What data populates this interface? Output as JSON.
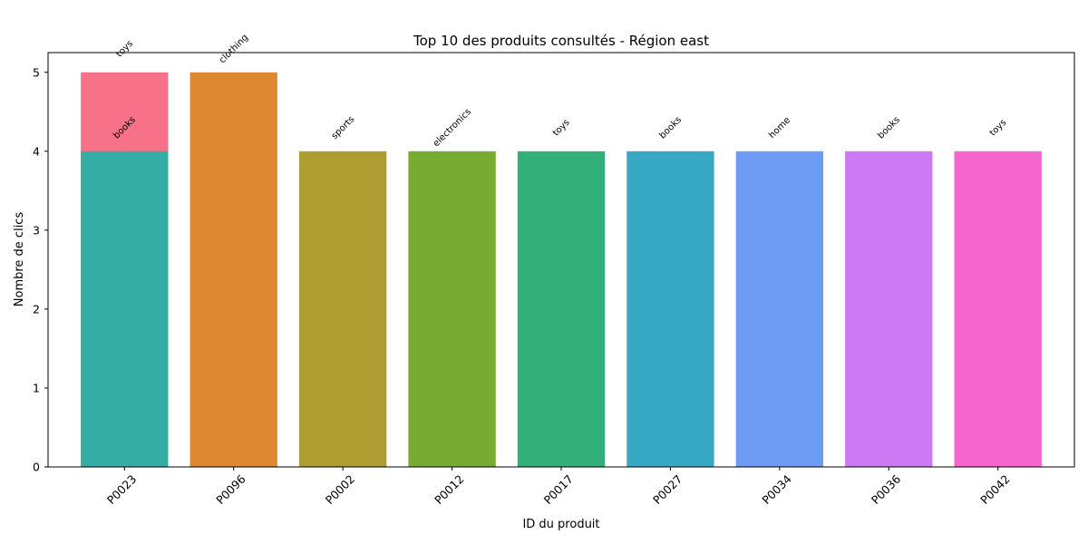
{
  "chart_data": {
    "type": "bar",
    "title": "Top 10 des produits consultés - Région east",
    "xlabel": "ID du produit",
    "ylabel": "Nombre de clics",
    "ylim": [
      0,
      5.25
    ],
    "yticks": [
      0,
      1,
      2,
      3,
      4,
      5
    ],
    "grid": false,
    "bars": [
      {
        "product": "P0023",
        "category": "toys",
        "value": 5,
        "color": "#f77189"
      },
      {
        "product": "P0096",
        "category": "clothing",
        "value": 5,
        "color": "#dc8932"
      },
      {
        "product": "P0002",
        "category": "sports",
        "value": 4,
        "color": "#ae9d31"
      },
      {
        "product": "P0012",
        "category": "electronics",
        "value": 4,
        "color": "#77ab31"
      },
      {
        "product": "P0017",
        "category": "toys",
        "value": 4,
        "color": "#33b07a"
      },
      {
        "product": "P0023",
        "category": "books",
        "value": 4,
        "color": "#36ada4"
      },
      {
        "product": "P0027",
        "category": "books",
        "value": 4,
        "color": "#38a9c5"
      },
      {
        "product": "P0034",
        "category": "home",
        "value": 4,
        "color": "#6e9bf4"
      },
      {
        "product": "P0036",
        "category": "books",
        "value": 4,
        "color": "#cc7af4"
      },
      {
        "product": "P0042",
        "category": "toys",
        "value": 4,
        "color": "#f565cc"
      }
    ],
    "x_categories": [
      "P0023",
      "P0096",
      "P0002",
      "P0012",
      "P0017",
      "P0027",
      "P0034",
      "P0036",
      "P0042"
    ]
  }
}
